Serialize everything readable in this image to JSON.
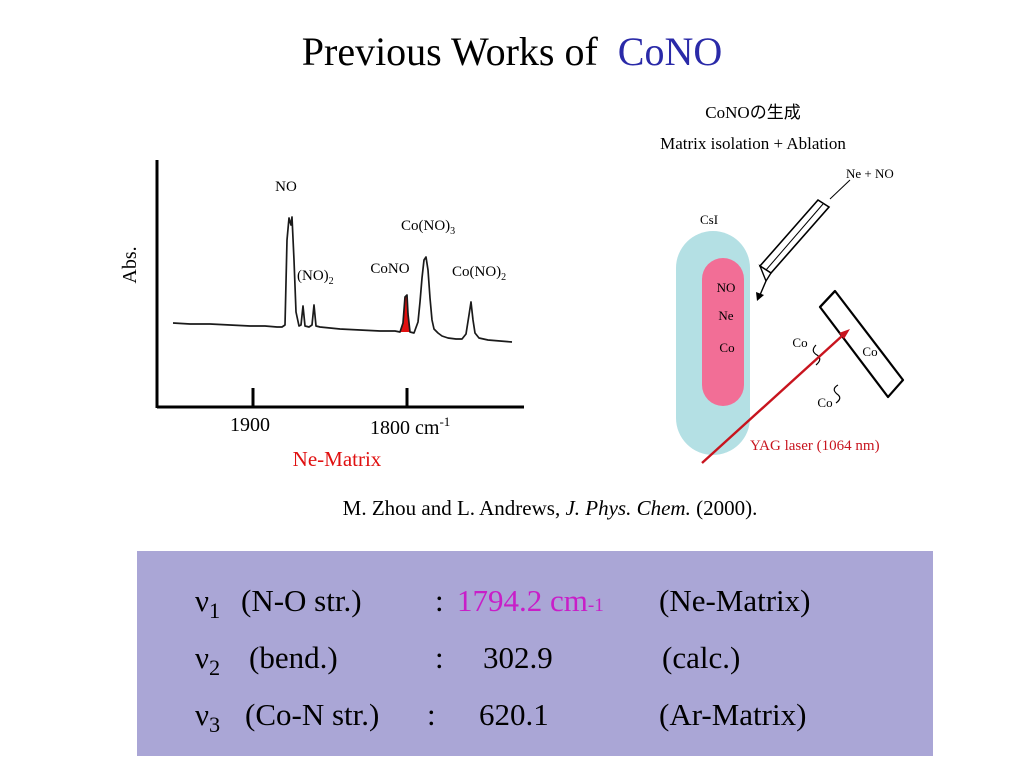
{
  "title": {
    "prefix": "Previous Works of",
    "molecule": "CoNO"
  },
  "spectrum": {
    "y_label": "Abs.",
    "x_tick_1900": "1900",
    "x_tick_1800": "1800 cm",
    "x_tick_1800_sup": "-1",
    "matrix_label": "Ne-Matrix",
    "peaks": {
      "no": "NO",
      "no_dimer": "(NO)",
      "no_dimer_sub": "2",
      "cono": "CoNO",
      "co_no3": "Co(NO)",
      "co_no3_sub": "3",
      "co_no2": "Co(NO)",
      "co_no2_sub": "2"
    },
    "colors": {
      "highlight": "#e01010",
      "trace": "#1a1a1a"
    }
  },
  "apparatus": {
    "heading_line1": "CoNOの生成",
    "heading_line2": "Matrix isolation + Ablation",
    "gas_label": "Ne + NO",
    "substrate_label": "CsI",
    "layer_no": "NO",
    "layer_ne": "Ne",
    "layer_co": "Co",
    "target_label": "Co",
    "plume_top": "Co",
    "plume_bottom": "Co",
    "laser_label": "YAG laser (1064 nm)",
    "colors": {
      "substrate": "#b4e0e4",
      "layer": "#f26e96",
      "laser": "#c8141e"
    }
  },
  "reference": {
    "authors": "M. Zhou and L. Andrews,",
    "journal": "J. Phys. Chem.",
    "year": "(2000)."
  },
  "vibrations": [
    {
      "symbol": "ν",
      "index": "1",
      "mode": "(N-O str.)",
      "colon": ":",
      "value": "1794.2 cm",
      "value_sup": "-1",
      "source": "(Ne-Matrix)"
    },
    {
      "symbol": "ν",
      "index": "2",
      "mode": "(bend.)",
      "colon": ":",
      "value": "302.9",
      "value_sup": "",
      "source": "(calc.)"
    },
    {
      "symbol": "ν",
      "index": "3",
      "mode": "(Co-N str.)",
      "colon": ":",
      "value": "620.1",
      "value_sup": "",
      "source": "(Ar-Matrix)"
    }
  ],
  "box_color": "#aaa6d6"
}
